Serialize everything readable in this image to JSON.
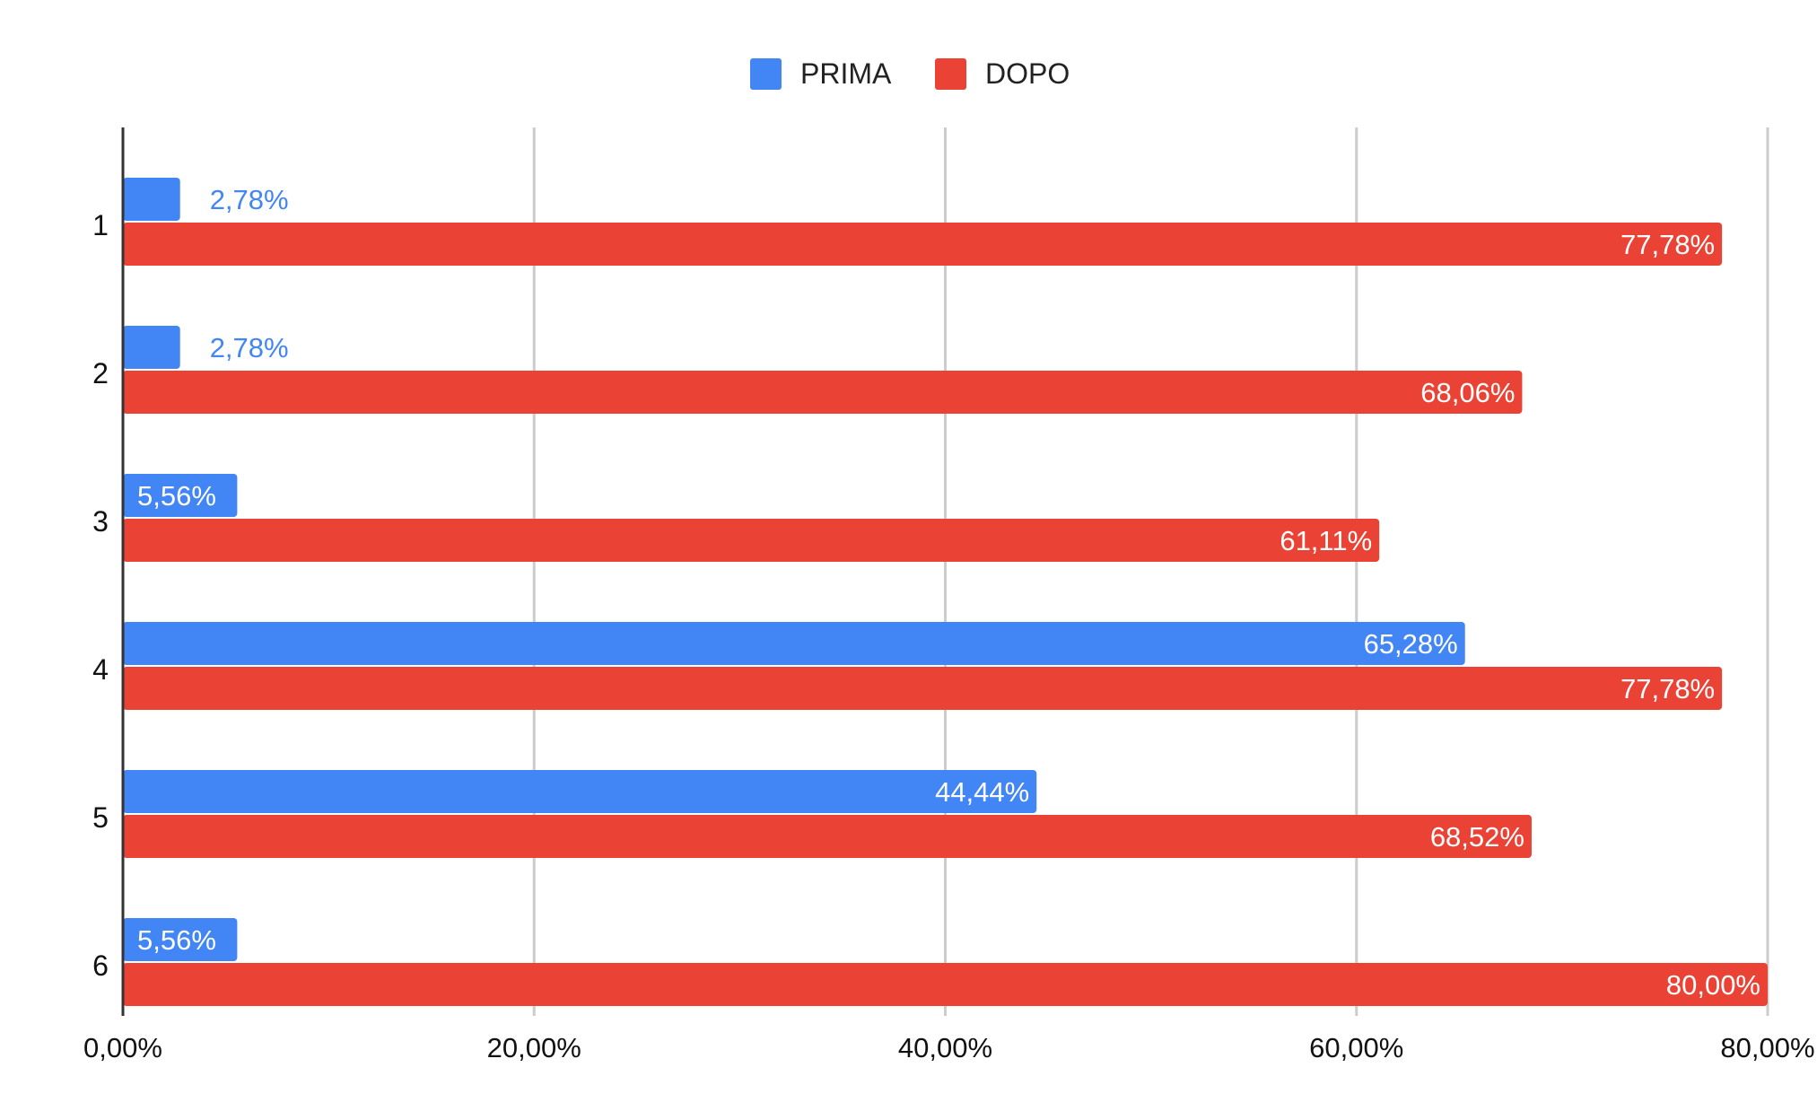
{
  "chart_data": {
    "type": "bar",
    "orientation": "horizontal",
    "title": "",
    "xlabel": "",
    "ylabel": "",
    "categories": [
      "1",
      "2",
      "3",
      "4",
      "5",
      "6"
    ],
    "series": [
      {
        "name": "PRIMA",
        "color": "#4285f4",
        "values": [
          2.78,
          2.78,
          5.56,
          65.28,
          44.44,
          5.56
        ],
        "labels": [
          "2,78%",
          "2,78%",
          "5,56%",
          "65,28%",
          "44,44%",
          "5,56%"
        ]
      },
      {
        "name": "DOPO",
        "color": "#ea4335",
        "values": [
          77.78,
          68.06,
          61.11,
          77.78,
          68.52,
          80.0
        ],
        "labels": [
          "77,78%",
          "68,06%",
          "61,11%",
          "77,78%",
          "68,52%",
          "80,00%"
        ]
      }
    ],
    "xlim": [
      0,
      80
    ],
    "xticks": [
      0,
      20,
      40,
      60,
      80
    ],
    "xtick_labels": [
      "0,00%",
      "20,00%",
      "40,00%",
      "60,00%",
      "80,00%"
    ],
    "grid": true,
    "legend_position": "top-center"
  }
}
